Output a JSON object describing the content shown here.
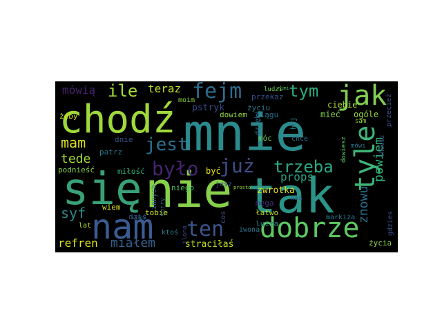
{
  "word_cloud": {
    "background": "#000000",
    "words": [
      {
        "text": "mnie",
        "color": "#2b8a8c"
      },
      {
        "text": "się",
        "color": "#38a177"
      },
      {
        "text": "nie",
        "color": "#87d04a"
      },
      {
        "text": "tak",
        "color": "#2a9487"
      },
      {
        "text": "chodź",
        "color": "#9fd93a"
      },
      {
        "text": "nam",
        "color": "#3a5c93"
      },
      {
        "text": "dobrze",
        "color": "#5ec962"
      },
      {
        "text": "jak",
        "color": "#82cf53"
      },
      {
        "text": "fejm",
        "color": "#2f6c8e"
      },
      {
        "text": "tyle",
        "color": "#3eb678"
      },
      {
        "text": "już",
        "color": "#3f4c89"
      },
      {
        "text": "było",
        "color": "#44256f"
      },
      {
        "text": "ten",
        "color": "#3a558b"
      },
      {
        "text": "jest",
        "color": "#2c728e"
      },
      {
        "text": "trzeba",
        "color": "#2aa986"
      },
      {
        "text": "ile",
        "color": "#a5db36"
      },
      {
        "text": "tym",
        "color": "#29ae80"
      },
      {
        "text": "mam",
        "color": "#dde318"
      },
      {
        "text": "teraz",
        "color": "#bfe025"
      },
      {
        "text": "mówią",
        "color": "#46236f"
      },
      {
        "text": "znowu",
        "color": "#2d708e"
      },
      {
        "text": "powiem",
        "color": "#2fb47c"
      },
      {
        "text": "props",
        "color": "#2ba083"
      },
      {
        "text": "tede",
        "color": "#a2da37"
      },
      {
        "text": "syf",
        "color": "#2c8c8c"
      },
      {
        "text": "refren",
        "color": "#e0e418"
      },
      {
        "text": "miałem",
        "color": "#35608d"
      },
      {
        "text": "straciłaś",
        "color": "#c2df23"
      },
      {
        "text": "pstryk",
        "color": "#3e4989"
      },
      {
        "text": "moim",
        "color": "#8fd744"
      },
      {
        "text": "życiu",
        "color": "#2a788e"
      },
      {
        "text": "dowiem",
        "color": "#95d840"
      },
      {
        "text": "ciągu",
        "color": "#2e6d8e"
      },
      {
        "text": "ciebie",
        "color": "#a8db34"
      },
      {
        "text": "mieć",
        "color": "#84d44b"
      },
      {
        "text": "ogóle",
        "color": "#9ad93c"
      },
      {
        "text": "przekaz",
        "color": "#3b528b"
      },
      {
        "text": "ludzi",
        "color": "#6ccd5a"
      },
      {
        "text": "żeby",
        "color": "#d0e11c"
      },
      {
        "text": "dnie",
        "color": "#3a538b"
      },
      {
        "text": "patrz",
        "color": "#2b748e"
      },
      {
        "text": "dziś",
        "color": "#3b518b"
      },
      {
        "text": "podnieść",
        "color": "#8bd646"
      },
      {
        "text": "miłość",
        "color": "#2fb47c"
      },
      {
        "text": "tobie",
        "color": "#d2e21b"
      },
      {
        "text": "wiem",
        "color": "#d8e219"
      },
      {
        "text": "lat",
        "color": "#b5de2b"
      },
      {
        "text": "niego",
        "color": "#4ac16d"
      },
      {
        "text": "być",
        "color": "#ece51b"
      },
      {
        "text": "zwrotka",
        "color": "#e5e419"
      },
      {
        "text": "mega",
        "color": "#46327e"
      },
      {
        "text": "łatwo",
        "color": "#b8de29"
      },
      {
        "text": "luiza",
        "color": "#24868e"
      },
      {
        "text": "iwona",
        "color": "#2b758e"
      },
      {
        "text": "ilona",
        "color": "#3f4788"
      },
      {
        "text": "ktoś",
        "color": "#27808e"
      },
      {
        "text": "móc",
        "color": "#70cf57"
      },
      {
        "text": "chce",
        "color": "#2d708e"
      },
      {
        "text": "dzięki",
        "color": "#2c738e"
      },
      {
        "text": "gdzies",
        "color": "#3b528b"
      },
      {
        "text": "życia",
        "color": "#8bd646"
      },
      {
        "text": "markiza",
        "color": "#2a788e"
      },
      {
        "text": "hej",
        "color": "#277f8e"
      },
      {
        "text": "innych",
        "color": "#31678e"
      },
      {
        "text": "sorry",
        "color": "#2c728e"
      },
      {
        "text": "dowiesz",
        "color": "#5ec962"
      },
      {
        "text": "cos",
        "color": "#3a548c"
      },
      {
        "text": "jesz",
        "color": "#3a548c"
      },
      {
        "text": "sam",
        "color": "#9dd93b"
      },
      {
        "text": "nas",
        "color": "#34618d"
      },
      {
        "text": "przecież",
        "color": "#3a538b"
      },
      {
        "text": "chcesz",
        "color": "#3e4a89"
      },
      {
        "text": "mówi",
        "color": "#2a778e"
      },
      {
        "text": "nimi",
        "color": "#5cc863"
      },
      {
        "text": "każdy",
        "color": "#2f6b8e"
      },
      {
        "text": "prosto",
        "color": "#9bd93c"
      }
    ]
  }
}
